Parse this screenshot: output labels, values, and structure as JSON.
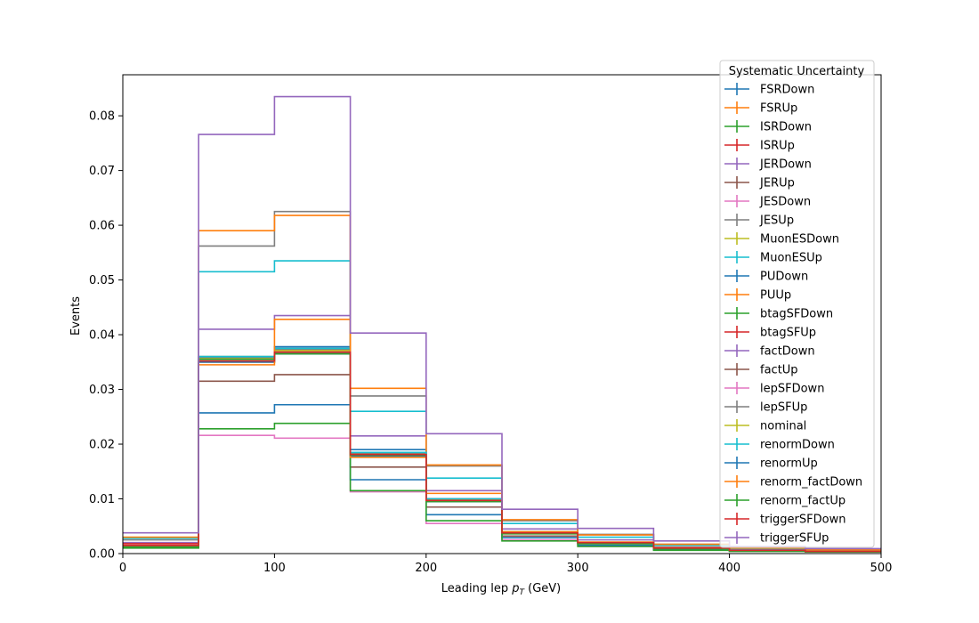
{
  "chart_data": {
    "type": "line",
    "style": "step-histogram",
    "xlabel_prefix": "Leading lep ",
    "xlabel_var": "p",
    "xlabel_sub": "T",
    "xlabel_suffix": " (GeV)",
    "ylabel": "Events",
    "xlim": [
      0,
      500
    ],
    "ylim": [
      0,
      0.0875
    ],
    "xticks": [
      "0",
      "100",
      "200",
      "300",
      "400",
      "500"
    ],
    "xtick_values": [
      0,
      100,
      200,
      300,
      400,
      500
    ],
    "yticks": [
      "0.00",
      "0.01",
      "0.02",
      "0.03",
      "0.04",
      "0.05",
      "0.06",
      "0.07",
      "0.08"
    ],
    "ytick_values": [
      0,
      0.01,
      0.02,
      0.03,
      0.04,
      0.05,
      0.06,
      0.07,
      0.08
    ],
    "grid": false,
    "legend_title": "Systematic Uncertainty",
    "legend_position": "top-right",
    "bin_edges": [
      0,
      50,
      100,
      150,
      200,
      250,
      300,
      350,
      400,
      450,
      500
    ],
    "series": [
      {
        "name": "FSRDown",
        "color": "#1f77b4",
        "values": [
          0.0015,
          0.036,
          0.0378,
          0.019,
          0.01,
          0.004,
          0.002,
          0.001,
          0.0006,
          0.0004
        ]
      },
      {
        "name": "FSRUp",
        "color": "#ff7f0e",
        "values": [
          0.0015,
          0.035,
          0.0368,
          0.018,
          0.0098,
          0.0038,
          0.002,
          0.001,
          0.0006,
          0.0004
        ]
      },
      {
        "name": "ISRDown",
        "color": "#2ca02c",
        "values": [
          0.0015,
          0.036,
          0.0375,
          0.0185,
          0.01,
          0.004,
          0.002,
          0.001,
          0.0006,
          0.0004
        ]
      },
      {
        "name": "ISRUp",
        "color": "#d62728",
        "values": [
          0.0015,
          0.0355,
          0.0372,
          0.0182,
          0.0098,
          0.0038,
          0.002,
          0.001,
          0.0006,
          0.0004
        ]
      },
      {
        "name": "JERDown",
        "color": "#9467bd",
        "values": [
          0.002,
          0.041,
          0.0435,
          0.0215,
          0.0115,
          0.0045,
          0.0025,
          0.0012,
          0.0007,
          0.0005
        ]
      },
      {
        "name": "JERUp",
        "color": "#8c564b",
        "values": [
          0.0015,
          0.0315,
          0.0327,
          0.0158,
          0.0085,
          0.0032,
          0.0018,
          0.0009,
          0.0005,
          0.0003
        ]
      },
      {
        "name": "JESDown",
        "color": "#e377c2",
        "values": [
          0.0012,
          0.0216,
          0.0211,
          0.0113,
          0.0055,
          0.0025,
          0.0013,
          0.0007,
          0.0004,
          0.0003
        ]
      },
      {
        "name": "JESUp",
        "color": "#7f7f7f",
        "values": [
          0.0025,
          0.0562,
          0.0625,
          0.0288,
          0.016,
          0.006,
          0.0035,
          0.0017,
          0.001,
          0.0007
        ]
      },
      {
        "name": "MuonESDown",
        "color": "#bcbd22",
        "values": [
          0.0015,
          0.0358,
          0.0372,
          0.0183,
          0.0097,
          0.0039,
          0.002,
          0.001,
          0.0006,
          0.0004
        ]
      },
      {
        "name": "MuonESUp",
        "color": "#17becf",
        "values": [
          0.0028,
          0.0515,
          0.0535,
          0.026,
          0.0138,
          0.0055,
          0.003,
          0.0015,
          0.0009,
          0.0006
        ]
      },
      {
        "name": "PUDown",
        "color": "#1f77b4",
        "values": [
          0.0012,
          0.0257,
          0.0272,
          0.0135,
          0.0071,
          0.0029,
          0.0015,
          0.0008,
          0.0005,
          0.0003
        ]
      },
      {
        "name": "PUUp",
        "color": "#ff7f0e",
        "values": [
          0.003,
          0.059,
          0.0618,
          0.0302,
          0.0162,
          0.0062,
          0.0034,
          0.0017,
          0.001,
          0.0007
        ]
      },
      {
        "name": "btagSFDown",
        "color": "#2ca02c",
        "values": [
          0.001,
          0.0228,
          0.0238,
          0.0115,
          0.006,
          0.0023,
          0.0013,
          0.0006,
          0.0004,
          0.0003
        ]
      },
      {
        "name": "btagSFUp",
        "color": "#d62728",
        "values": [
          0.0018,
          0.0355,
          0.037,
          0.018,
          0.0097,
          0.0038,
          0.002,
          0.001,
          0.0006,
          0.0004
        ]
      },
      {
        "name": "factDown",
        "color": "#9467bd",
        "values": [
          0.0015,
          0.0358,
          0.0375,
          0.0185,
          0.01,
          0.004,
          0.002,
          0.001,
          0.0006,
          0.0004
        ]
      },
      {
        "name": "factUp",
        "color": "#8c564b",
        "values": [
          0.0015,
          0.035,
          0.0365,
          0.0178,
          0.0095,
          0.0037,
          0.0019,
          0.0009,
          0.0006,
          0.0004
        ]
      },
      {
        "name": "lepSFDown",
        "color": "#e377c2",
        "values": [
          0.0015,
          0.0355,
          0.037,
          0.018,
          0.0097,
          0.0038,
          0.002,
          0.001,
          0.0006,
          0.0004
        ]
      },
      {
        "name": "lepSFUp",
        "color": "#7f7f7f",
        "values": [
          0.0015,
          0.0358,
          0.0373,
          0.0183,
          0.0099,
          0.0039,
          0.002,
          0.001,
          0.0006,
          0.0004
        ]
      },
      {
        "name": "nominal",
        "color": "#bcbd22",
        "values": [
          0.0015,
          0.0356,
          0.0371,
          0.0181,
          0.0098,
          0.0038,
          0.002,
          0.001,
          0.0006,
          0.0004
        ]
      },
      {
        "name": "renormDown",
        "color": "#17becf",
        "values": [
          0.0015,
          0.036,
          0.0375,
          0.0185,
          0.01,
          0.004,
          0.002,
          0.001,
          0.0006,
          0.0004
        ]
      },
      {
        "name": "renormUp",
        "color": "#1f77b4",
        "values": [
          0.0015,
          0.035,
          0.0365,
          0.0178,
          0.0095,
          0.0037,
          0.0019,
          0.0009,
          0.0006,
          0.0004
        ]
      },
      {
        "name": "renorm_factDown",
        "color": "#ff7f0e",
        "values": [
          0.0015,
          0.0345,
          0.0428,
          0.0176,
          0.011,
          0.004,
          0.0021,
          0.0011,
          0.0006,
          0.0004
        ]
      },
      {
        "name": "renorm_factUp",
        "color": "#2ca02c",
        "values": [
          0.0012,
          0.0355,
          0.0365,
          0.018,
          0.0095,
          0.0036,
          0.0018,
          0.0009,
          0.0005,
          0.0003
        ]
      },
      {
        "name": "triggerSFDown",
        "color": "#d62728",
        "values": [
          0.0015,
          0.0352,
          0.0368,
          0.0181,
          0.0097,
          0.0038,
          0.002,
          0.001,
          0.0006,
          0.0004
        ]
      },
      {
        "name": "triggerSFUp",
        "color": "#9467bd",
        "values": [
          0.0038,
          0.0766,
          0.0835,
          0.0403,
          0.0219,
          0.0081,
          0.0046,
          0.0023,
          0.0013,
          0.0009
        ]
      }
    ]
  }
}
